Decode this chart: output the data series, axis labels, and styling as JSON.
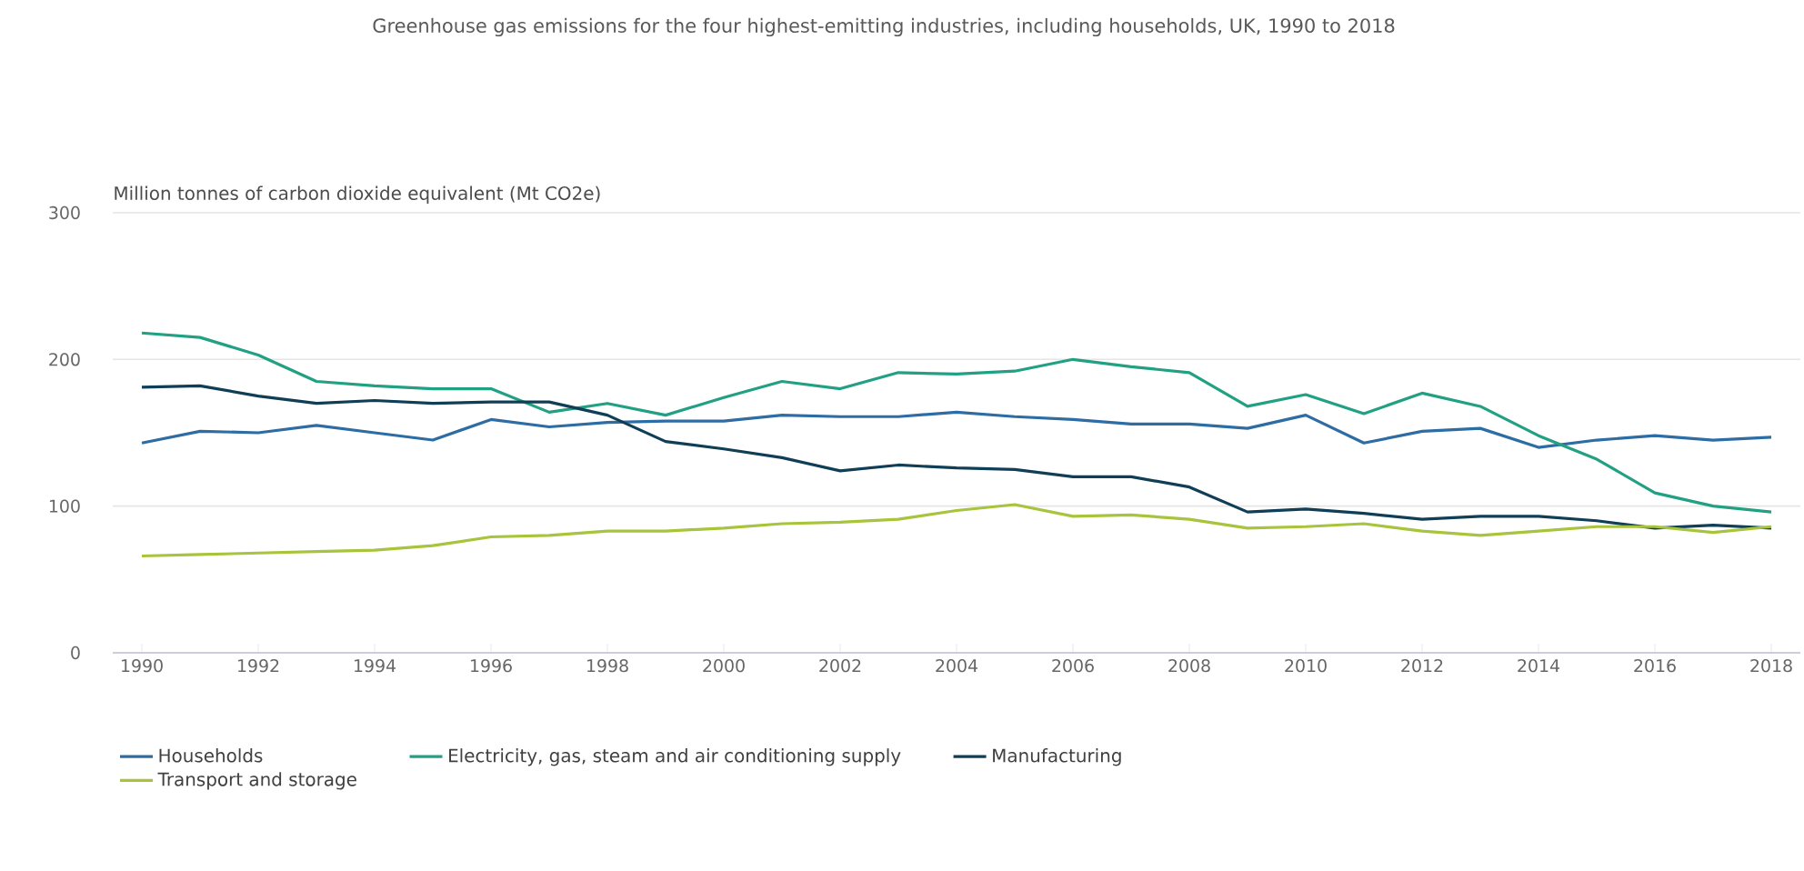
{
  "chart_data": {
    "type": "line",
    "title": "Greenhouse gas emissions for the four highest-emitting industries, including households, UK, 1990 to 2018",
    "ylabel": "Million tonnes of carbon dioxide equivalent (Mt CO2e)",
    "x": [
      1990,
      1991,
      1992,
      1993,
      1994,
      1995,
      1996,
      1997,
      1998,
      1999,
      2000,
      2001,
      2002,
      2003,
      2004,
      2005,
      2006,
      2007,
      2008,
      2009,
      2010,
      2011,
      2012,
      2013,
      2014,
      2015,
      2016,
      2017,
      2018
    ],
    "series": [
      {
        "name": "Households",
        "color": "#2e6ca4",
        "values": [
          143,
          151,
          150,
          155,
          150,
          145,
          159,
          154,
          157,
          158,
          158,
          162,
          161,
          161,
          164,
          161,
          159,
          156,
          156,
          153,
          162,
          143,
          151,
          153,
          140,
          145,
          148,
          145,
          147
        ]
      },
      {
        "name": "Electricity, gas, steam and air conditioning supply",
        "color": "#22a083",
        "values": [
          218,
          215,
          203,
          185,
          182,
          180,
          180,
          164,
          170,
          162,
          174,
          185,
          180,
          191,
          190,
          192,
          200,
          195,
          191,
          168,
          176,
          163,
          177,
          168,
          148,
          132,
          109,
          100,
          96
        ]
      },
      {
        "name": "Manufacturing",
        "color": "#0f3e56",
        "values": [
          181,
          182,
          175,
          170,
          172,
          170,
          171,
          171,
          162,
          144,
          139,
          133,
          124,
          128,
          126,
          125,
          120,
          120,
          113,
          96,
          98,
          95,
          91,
          93,
          93,
          90,
          85,
          87,
          85
        ]
      },
      {
        "name": "Transport and storage",
        "color": "#a8c43c",
        "values": [
          66,
          67,
          68,
          69,
          70,
          73,
          79,
          80,
          83,
          83,
          85,
          88,
          89,
          91,
          97,
          101,
          93,
          94,
          91,
          85,
          86,
          88,
          83,
          80,
          83,
          86,
          86,
          82,
          86
        ]
      }
    ],
    "xlim": [
      1989.5,
      2018.5
    ],
    "xticks": [
      1990,
      1992,
      1994,
      1996,
      1998,
      2000,
      2002,
      2004,
      2006,
      2008,
      2010,
      2012,
      2014,
      2016,
      2018
    ],
    "ylim": [
      0,
      300
    ],
    "yticks": [
      0,
      100,
      200,
      300
    ],
    "grid": "y",
    "legend": "bottom",
    "marker": "none",
    "line_style": "solid"
  }
}
